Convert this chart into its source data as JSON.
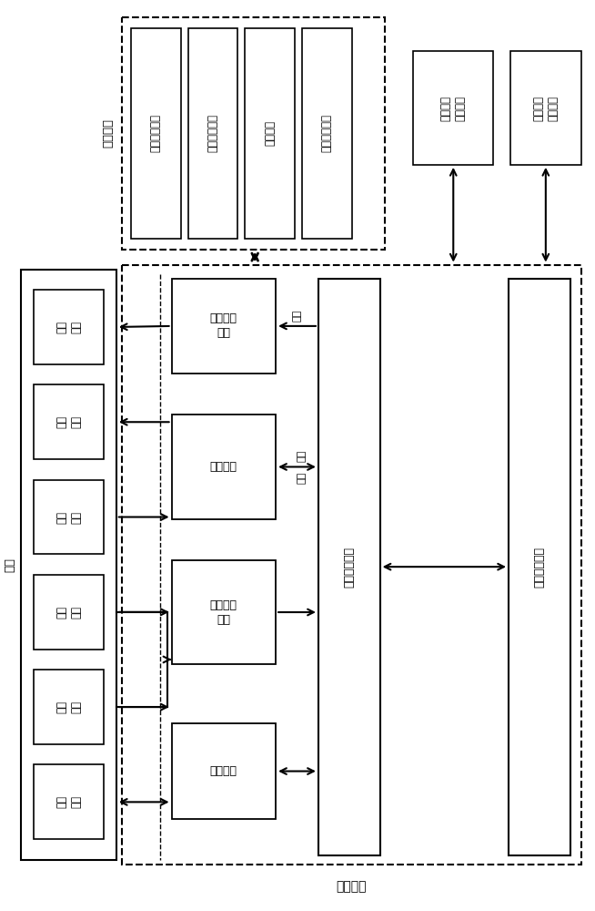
{
  "fig_width": 6.54,
  "fig_height": 10.0,
  "bg_color": "#ffffff",
  "label_yingyon": "应用模块",
  "label_jiemian": "界面",
  "label_hexin": "核心模块",
  "app_modules": [
    "参数定量模块",
    "涡流补偿模块",
    "匀场模块",
    "其他特殊应用"
  ],
  "file_module": "文件存储\n管理模块",
  "api_module": "程序调用\n接口模块",
  "ui_modules": [
    "图形\n显示",
    "状态\n显示",
    "操作\n命令",
    "参数\n设置",
    "序列\n编辑",
    "测试\n接口"
  ],
  "dp_label": "数据处理\n模块",
  "ctrl_label": "控制模块",
  "seq_label": "序列生成\n模块",
  "test_label": "测试模块",
  "enc_label": "数据封装模块",
  "net_label": "网络通讯模块",
  "data_label": "数据",
  "state_label": "状态",
  "cmd_label": "命令"
}
